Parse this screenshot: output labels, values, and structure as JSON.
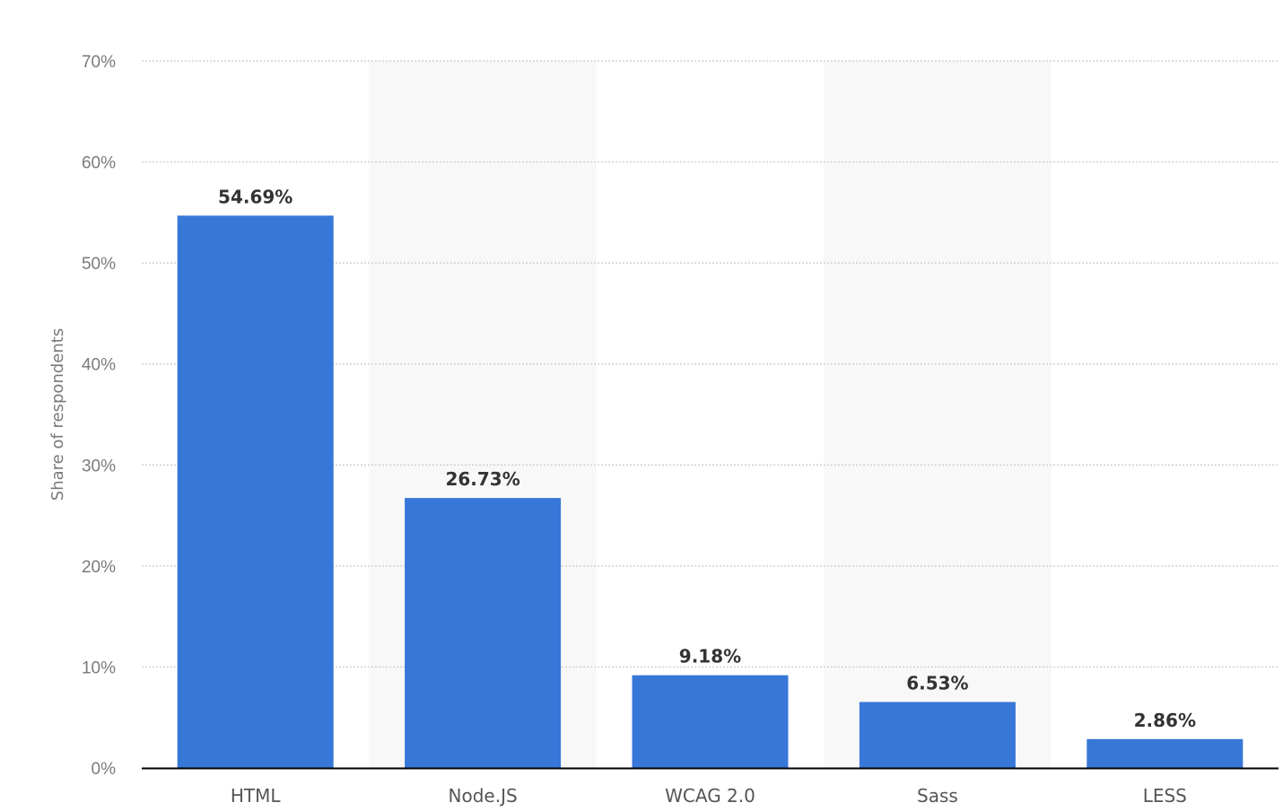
{
  "chart_data": {
    "type": "bar",
    "title": "",
    "xlabel": "",
    "ylabel": "Share of respondents",
    "categories": [
      "HTML",
      "Node.JS",
      "WCAG 2.0",
      "Sass",
      "LESS"
    ],
    "values": [
      54.69,
      26.73,
      9.18,
      6.53,
      2.86
    ],
    "data_labels": [
      "54.69%",
      "26.73%",
      "9.18%",
      "6.53%",
      "2.86%"
    ],
    "ylim": [
      0,
      70
    ],
    "yticks": [
      0,
      10,
      20,
      30,
      40,
      50,
      60,
      70
    ],
    "ytick_labels": [
      "0%",
      "10%",
      "20%",
      "30%",
      "40%",
      "50%",
      "60%",
      "70%"
    ],
    "grid": true,
    "legend": "none",
    "colors": {
      "bar": "#3777d7",
      "band": "#f8f8f8",
      "grid": "#c8c8c8",
      "axis": "#000000"
    }
  }
}
